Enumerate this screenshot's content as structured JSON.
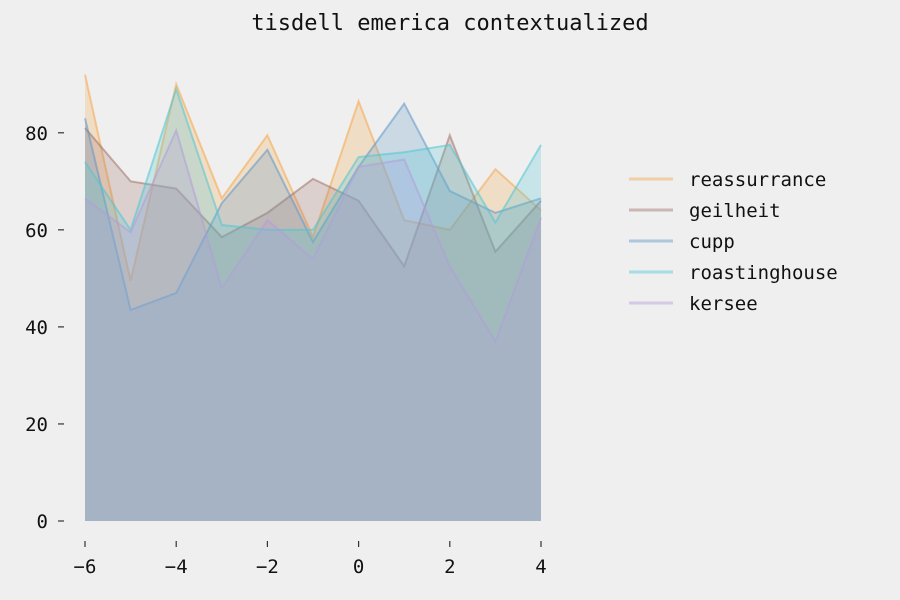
{
  "chart_data": {
    "type": "area",
    "title": "tisdell emerica contextualized",
    "xlabel": "",
    "ylabel": "",
    "x": [
      -6,
      -5,
      -4,
      -3,
      -2,
      -1,
      0,
      1,
      2,
      3,
      4
    ],
    "xlim": [
      -6,
      4
    ],
    "ylim": [
      0,
      95
    ],
    "xticks": [
      "−6",
      "−4",
      "−2",
      "0",
      "2",
      "4"
    ],
    "xtick_values": [
      -6,
      -4,
      -2,
      0,
      2,
      4
    ],
    "yticks": [
      "0",
      "20",
      "40",
      "60",
      "80"
    ],
    "ytick_values": [
      0,
      20,
      40,
      60,
      80
    ],
    "grid": false,
    "legend_position": "right",
    "series": [
      {
        "name": "reassurrance",
        "color": "#f5a64a",
        "values": [
          92,
          49.5,
          90,
          66.5,
          79.5,
          58.5,
          86.5,
          62,
          60,
          72.5,
          64
        ]
      },
      {
        "name": "geilheit",
        "color": "#a0726a",
        "values": [
          81,
          70,
          68.5,
          58.5,
          63.5,
          70.5,
          66,
          52.5,
          79.5,
          55.5,
          66
        ]
      },
      {
        "name": "cupp",
        "color": "#5e97c6",
        "values": [
          83,
          43.5,
          47,
          65.5,
          76.5,
          57.5,
          73,
          86,
          68,
          63.5,
          66.5
        ]
      },
      {
        "name": "roastinghouse",
        "color": "#4fc7d2",
        "values": [
          74,
          60,
          89,
          61,
          60,
          60,
          75,
          76,
          77.5,
          61.5,
          77.5
        ]
      },
      {
        "name": "kersee",
        "color": "#b39ddb",
        "values": [
          66.5,
          59.5,
          80.5,
          48,
          62,
          54,
          73,
          74.5,
          52.5,
          37,
          62.5
        ]
      }
    ]
  }
}
